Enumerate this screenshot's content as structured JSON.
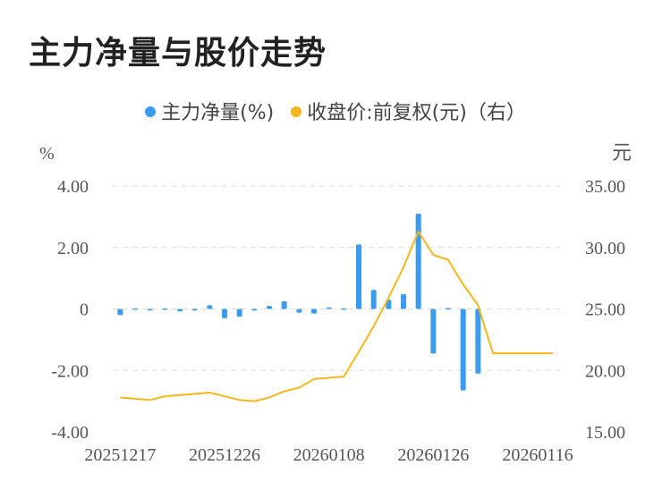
{
  "title": "主力净量与股价走势",
  "legend": {
    "flow_label": "主力净量(%)",
    "price_label": "收盘价:前复权(元)（右）"
  },
  "axes": {
    "left_unit": "%",
    "right_unit": "元",
    "left_ticks": [
      "4.00",
      "2.00",
      "0",
      "-2.00",
      "-4.00"
    ],
    "right_ticks": [
      "35.00",
      "30.00",
      "25.00",
      "20.00",
      "15.00"
    ],
    "x_ticks": [
      "20251217",
      "20251226",
      "20260108",
      "20260126",
      "20260116"
    ]
  },
  "colors": {
    "flow": "#3a9cf0",
    "price": "#f5b71a",
    "grid": "#dddddd"
  },
  "chart_data": {
    "type": "bar+line",
    "title": "主力净量与股价走势",
    "left_axis": {
      "unit": "%",
      "ylim": [
        -4,
        4
      ]
    },
    "right_axis": {
      "unit": "元",
      "ylim": [
        15,
        35
      ]
    },
    "series": [
      {
        "name": "主力净量(%)",
        "type": "bar",
        "axis": "left",
        "values": [
          -0.2,
          0.02,
          -0.05,
          0.02,
          -0.08,
          -0.05,
          0.12,
          -0.3,
          -0.25,
          -0.05,
          0.1,
          0.25,
          -0.12,
          -0.15,
          0.05,
          0.02,
          2.1,
          0.62,
          0.3,
          0.48,
          3.1,
          -1.45,
          0.03,
          -2.65,
          -2.1,
          0,
          0,
          0,
          0,
          0
        ]
      },
      {
        "name": "收盘价:前复权(元)（右）",
        "type": "line",
        "axis": "right",
        "values": [
          17.8,
          17.7,
          17.6,
          17.9,
          18.0,
          18.1,
          18.2,
          17.9,
          17.6,
          17.5,
          17.8,
          18.3,
          18.6,
          19.3,
          19.4,
          19.5,
          21.5,
          23.6,
          25.9,
          28.4,
          31.3,
          29.4,
          29.0,
          27.0,
          25.3,
          21.4,
          21.4,
          21.4,
          21.4,
          21.4
        ]
      }
    ]
  }
}
